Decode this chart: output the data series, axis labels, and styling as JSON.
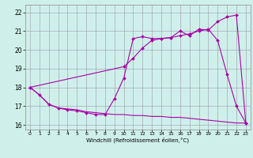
{
  "xlabel": "Windchill (Refroidissement éolien,°C)",
  "bg_color": "#cff0ea",
  "line_color": "#aa00aa",
  "xlim": [
    -0.5,
    23.5
  ],
  "ylim": [
    15.75,
    22.4
  ],
  "yticks": [
    16,
    17,
    18,
    19,
    20,
    21,
    22
  ],
  "xticks": [
    0,
    1,
    2,
    3,
    4,
    5,
    6,
    7,
    8,
    9,
    10,
    11,
    12,
    13,
    14,
    15,
    16,
    17,
    18,
    19,
    20,
    21,
    22,
    23
  ],
  "line1_x": [
    0,
    1,
    2,
    3,
    4,
    5,
    6,
    7,
    8,
    9,
    10,
    11,
    12,
    13,
    14,
    15,
    16,
    17,
    18,
    19,
    20,
    21,
    22,
    23
  ],
  "line1_y": [
    18.0,
    17.6,
    17.1,
    16.9,
    16.8,
    16.75,
    16.65,
    16.55,
    16.55,
    17.4,
    18.5,
    20.6,
    20.7,
    20.6,
    20.6,
    20.65,
    21.0,
    20.75,
    21.1,
    21.05,
    21.5,
    21.75,
    21.85,
    16.1
  ],
  "line2_x": [
    0,
    1,
    2,
    3,
    4,
    5,
    6,
    7,
    8,
    9,
    10,
    11,
    12,
    13,
    14,
    15,
    16,
    17,
    18,
    19,
    20,
    21,
    22,
    23
  ],
  "line2_y": [
    18.0,
    17.6,
    17.1,
    16.9,
    16.85,
    16.8,
    16.7,
    16.65,
    16.6,
    16.55,
    16.55,
    16.5,
    16.5,
    16.45,
    16.45,
    16.4,
    16.4,
    16.35,
    16.3,
    16.25,
    16.2,
    16.15,
    16.1,
    16.1
  ],
  "line3_x": [
    0,
    10,
    11,
    12,
    13,
    14,
    15,
    16,
    17,
    18,
    19,
    20,
    21,
    22,
    23
  ],
  "line3_y": [
    18.0,
    19.1,
    19.55,
    20.1,
    20.5,
    20.6,
    20.65,
    20.75,
    20.85,
    21.0,
    21.1,
    20.5,
    18.7,
    17.0,
    16.1
  ]
}
